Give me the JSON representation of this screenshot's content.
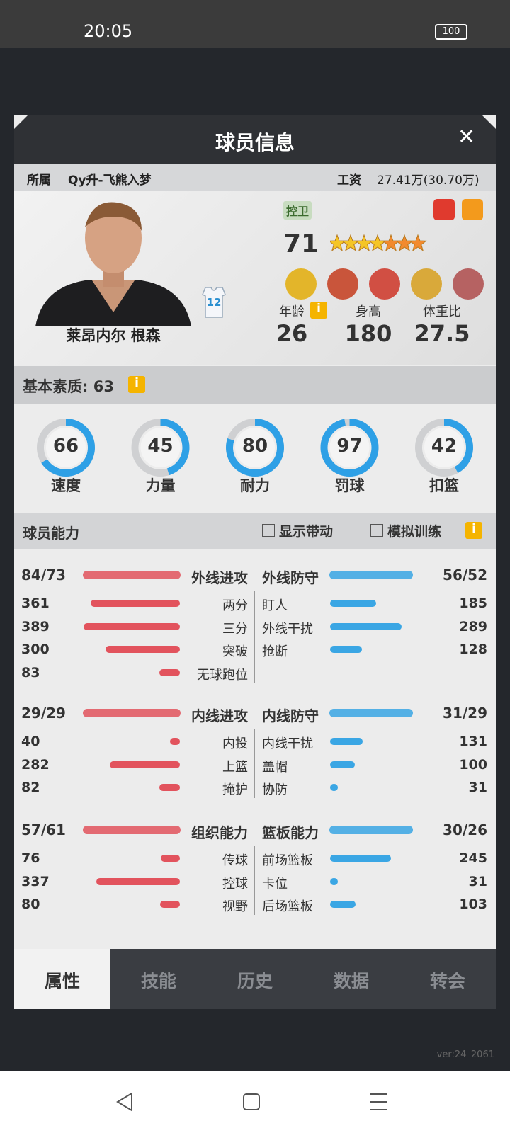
{
  "status_bar": {
    "time": "20:05",
    "battery": "100"
  },
  "dialog": {
    "title": "球员信息",
    "team_label": "所属",
    "team": "Qy升-飞熊入梦",
    "salary_label": "工资",
    "salary": "27.41万(30.70万)"
  },
  "player": {
    "name": "莱昂内尔 根森",
    "jersey": "12",
    "position": "控卫",
    "rating": 71,
    "stats": [
      {
        "label": "年龄",
        "value": 26
      },
      {
        "label": "身高",
        "value": 180
      },
      {
        "label": "体重比",
        "value": 27.5
      }
    ]
  },
  "basic": {
    "title": "基本素质: 63",
    "attributes": [
      {
        "label": "速度",
        "value": 66
      },
      {
        "label": "力量",
        "value": 45
      },
      {
        "label": "耐力",
        "value": 80
      },
      {
        "label": "罚球",
        "value": 97
      },
      {
        "label": "扣篮",
        "value": 42
      }
    ]
  },
  "abilities": {
    "title": "球员能力",
    "options": [
      "显示带动",
      "模拟训练"
    ],
    "left_color": "#e2535d",
    "right_color": "#3aa6e4",
    "groups": [
      {
        "left": {
          "name": "外线进攻",
          "rating": "84/73",
          "items": [
            {
              "label": "两分",
              "value": 361
            },
            {
              "label": "三分",
              "value": 389
            },
            {
              "label": "突破",
              "value": 300
            },
            {
              "label": "无球跑位",
              "value": 83
            }
          ]
        },
        "right": {
          "name": "外线防守",
          "rating": "56/52",
          "items": [
            {
              "label": "盯人",
              "value": 185
            },
            {
              "label": "外线干扰",
              "value": 289
            },
            {
              "label": "抢断",
              "value": 128
            }
          ]
        }
      },
      {
        "left": {
          "name": "内线进攻",
          "rating": "29/29",
          "items": [
            {
              "label": "内投",
              "value": 40
            },
            {
              "label": "上篮",
              "value": 282
            },
            {
              "label": "掩护",
              "value": 82
            }
          ]
        },
        "right": {
          "name": "内线防守",
          "rating": "31/29",
          "items": [
            {
              "label": "内线干扰",
              "value": 131
            },
            {
              "label": "盖帽",
              "value": 100
            },
            {
              "label": "协防",
              "value": 31
            }
          ]
        }
      },
      {
        "left": {
          "name": "组织能力",
          "rating": "57/61",
          "items": [
            {
              "label": "传球",
              "value": 76
            },
            {
              "label": "控球",
              "value": 337
            },
            {
              "label": "视野",
              "value": 80
            }
          ]
        },
        "right": {
          "name": "篮板能力",
          "rating": "30/26",
          "items": [
            {
              "label": "前场篮板",
              "value": 245
            },
            {
              "label": "卡位",
              "value": 31
            },
            {
              "label": "后场篮板",
              "value": 103
            }
          ]
        }
      }
    ]
  },
  "tabs": [
    "属性",
    "技能",
    "历史",
    "数据",
    "转会"
  ],
  "version": "ver:24_2061"
}
